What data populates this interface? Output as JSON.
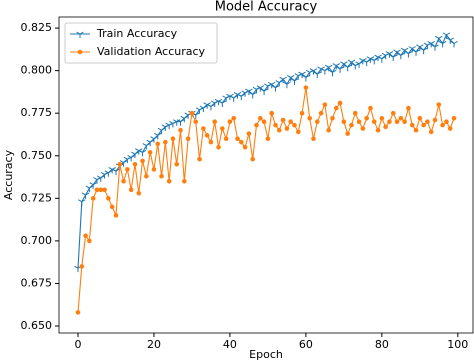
{
  "chart_data": {
    "type": "line",
    "title": "Model Accuracy",
    "x_label": "Epoch",
    "y_label": "Accuracy",
    "x": [
      0,
      1,
      2,
      3,
      4,
      5,
      6,
      7,
      8,
      9,
      10,
      11,
      12,
      13,
      14,
      15,
      16,
      17,
      18,
      19,
      20,
      21,
      22,
      23,
      24,
      25,
      26,
      27,
      28,
      29,
      30,
      31,
      32,
      33,
      34,
      35,
      36,
      37,
      38,
      39,
      40,
      41,
      42,
      43,
      44,
      45,
      46,
      47,
      48,
      49,
      50,
      51,
      52,
      53,
      54,
      55,
      56,
      57,
      58,
      59,
      60,
      61,
      62,
      63,
      64,
      65,
      66,
      67,
      68,
      69,
      70,
      71,
      72,
      73,
      74,
      75,
      76,
      77,
      78,
      79,
      80,
      81,
      82,
      83,
      84,
      85,
      86,
      87,
      88,
      89,
      90,
      91,
      92,
      93,
      94,
      95,
      96,
      97,
      98,
      99
    ],
    "series": [
      {
        "name": "Train Accuracy",
        "color": "#1f77b4",
        "marker": "tri_down",
        "values": [
          0.684,
          0.723,
          0.727,
          0.731,
          0.733,
          0.736,
          0.737,
          0.739,
          0.74,
          0.742,
          0.741,
          0.744,
          0.746,
          0.748,
          0.749,
          0.751,
          0.753,
          0.752,
          0.756,
          0.758,
          0.76,
          0.762,
          0.765,
          0.767,
          0.768,
          0.769,
          0.77,
          0.77,
          0.772,
          0.774,
          0.775,
          0.774,
          0.777,
          0.778,
          0.78,
          0.779,
          0.781,
          0.782,
          0.781,
          0.784,
          0.785,
          0.784,
          0.786,
          0.785,
          0.787,
          0.788,
          0.786,
          0.789,
          0.79,
          0.788,
          0.791,
          0.792,
          0.79,
          0.793,
          0.795,
          0.792,
          0.796,
          0.794,
          0.797,
          0.798,
          0.796,
          0.799,
          0.8,
          0.798,
          0.801,
          0.8,
          0.802,
          0.799,
          0.803,
          0.801,
          0.804,
          0.802,
          0.805,
          0.803,
          0.804,
          0.806,
          0.805,
          0.807,
          0.806,
          0.808,
          0.807,
          0.809,
          0.81,
          0.808,
          0.811,
          0.809,
          0.812,
          0.81,
          0.813,
          0.811,
          0.814,
          0.812,
          0.815,
          0.816,
          0.814,
          0.819,
          0.816,
          0.821,
          0.818,
          0.816
        ]
      },
      {
        "name": "Validation Accuracy",
        "color": "#ff7f0e",
        "marker": "circle",
        "values": [
          0.658,
          0.685,
          0.703,
          0.7,
          0.725,
          0.73,
          0.73,
          0.73,
          0.725,
          0.72,
          0.715,
          0.745,
          0.735,
          0.742,
          0.73,
          0.745,
          0.728,
          0.747,
          0.738,
          0.752,
          0.742,
          0.757,
          0.738,
          0.758,
          0.735,
          0.76,
          0.745,
          0.765,
          0.735,
          0.76,
          0.775,
          0.77,
          0.748,
          0.766,
          0.762,
          0.758,
          0.77,
          0.755,
          0.766,
          0.76,
          0.77,
          0.772,
          0.76,
          0.758,
          0.755,
          0.763,
          0.748,
          0.768,
          0.772,
          0.77,
          0.76,
          0.775,
          0.768,
          0.765,
          0.771,
          0.766,
          0.77,
          0.768,
          0.764,
          0.775,
          0.79,
          0.772,
          0.76,
          0.77,
          0.775,
          0.78,
          0.765,
          0.772,
          0.778,
          0.781,
          0.77,
          0.763,
          0.768,
          0.775,
          0.77,
          0.766,
          0.772,
          0.778,
          0.77,
          0.765,
          0.772,
          0.767,
          0.77,
          0.775,
          0.77,
          0.772,
          0.77,
          0.778,
          0.768,
          0.765,
          0.772,
          0.768,
          0.77,
          0.764,
          0.771,
          0.78,
          0.768,
          0.77,
          0.766,
          0.772
        ]
      }
    ],
    "xlim": [
      -5,
      104
    ],
    "ylim": [
      0.6459,
      0.8315
    ],
    "xticks": [
      0,
      20,
      40,
      60,
      80,
      100
    ],
    "yticks": [
      {
        "value": 0.65,
        "label": "0.650"
      },
      {
        "value": 0.675,
        "label": "0.675"
      },
      {
        "value": 0.7,
        "label": "0.700"
      },
      {
        "value": 0.725,
        "label": "0.725"
      },
      {
        "value": 0.75,
        "label": "0.750"
      },
      {
        "value": 0.775,
        "label": "0.775"
      },
      {
        "value": 0.8,
        "label": "0.800"
      },
      {
        "value": 0.825,
        "label": "0.825"
      }
    ],
    "legend": "upper left",
    "grid": false
  }
}
